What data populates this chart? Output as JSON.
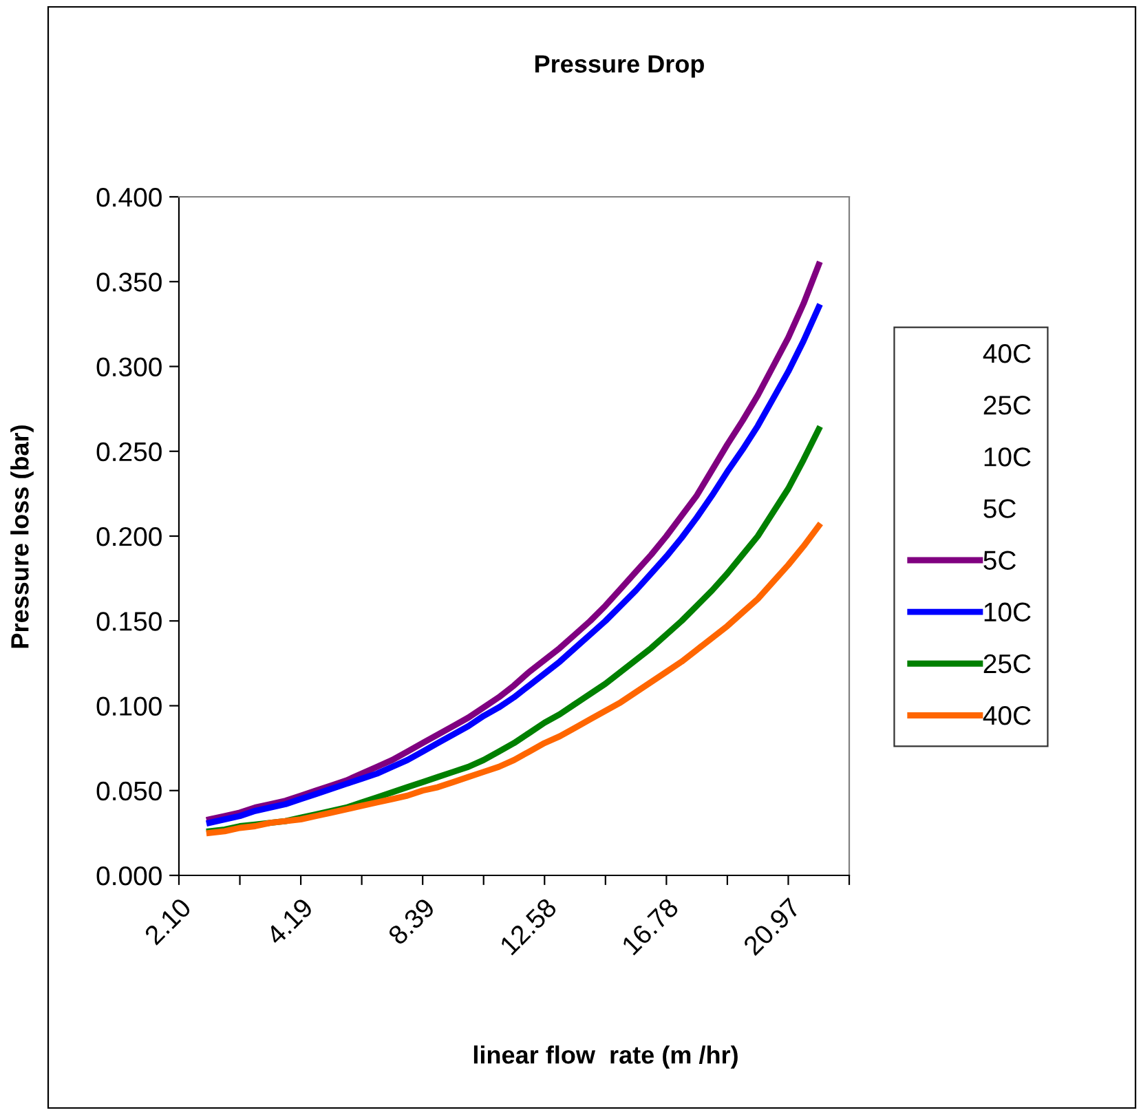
{
  "chart_data": {
    "type": "line",
    "title": "Pressure Drop",
    "xlabel": "linear flow  rate (m /hr)",
    "ylabel": "Pressure loss (bar)",
    "categories": [
      "2.10",
      null,
      null,
      null,
      null,
      null,
      null,
      null,
      "4.19",
      null,
      null,
      null,
      null,
      null,
      null,
      null,
      "8.39",
      null,
      null,
      null,
      null,
      null,
      null,
      null,
      "12.58",
      null,
      null,
      null,
      null,
      null,
      null,
      null,
      "16.78",
      null,
      null,
      null,
      null,
      null,
      null,
      null,
      "20.97",
      null,
      null,
      null,
      null
    ],
    "series": [
      {
        "name": "40C",
        "values": [
          null,
          null,
          null,
          null,
          null,
          null,
          null,
          null,
          null,
          null,
          null,
          null,
          null,
          null,
          null,
          null,
          null,
          null,
          null,
          null,
          null,
          null,
          null,
          null,
          null,
          null,
          null,
          null,
          null,
          null,
          null,
          null,
          null,
          null,
          null,
          null,
          null,
          null,
          null,
          null,
          null,
          null,
          null,
          null,
          null
        ]
      },
      {
        "name": "25C",
        "values": [
          null,
          null,
          null,
          null,
          null,
          null,
          null,
          null,
          null,
          null,
          null,
          null,
          null,
          null,
          null,
          null,
          null,
          null,
          null,
          null,
          null,
          null,
          null,
          null,
          null,
          null,
          null,
          null,
          null,
          null,
          null,
          null,
          null,
          null,
          null,
          null,
          null,
          null,
          null,
          null,
          null,
          null,
          null,
          null,
          null
        ]
      },
      {
        "name": "10C",
        "values": [
          null,
          null,
          null,
          null,
          null,
          null,
          null,
          null,
          null,
          null,
          null,
          null,
          null,
          null,
          null,
          null,
          null,
          null,
          null,
          null,
          null,
          null,
          null,
          null,
          null,
          null,
          null,
          null,
          null,
          null,
          null,
          null,
          null,
          null,
          null,
          null,
          null,
          null,
          null,
          null,
          null,
          null,
          null,
          null,
          null
        ]
      },
      {
        "name": "5C",
        "values": [
          null,
          null,
          null,
          null,
          null,
          null,
          null,
          null,
          null,
          null,
          null,
          null,
          null,
          null,
          null,
          null,
          null,
          null,
          null,
          null,
          null,
          null,
          null,
          null,
          null,
          null,
          null,
          null,
          null,
          null,
          null,
          null,
          null,
          null,
          null,
          null,
          null,
          null,
          null,
          null,
          null,
          null,
          null,
          null,
          null
        ]
      },
      {
        "name": "5C",
        "color": "#800080",
        "values": [
          null,
          null,
          0.033,
          0.035,
          0.037,
          0.04,
          0.042,
          0.044,
          0.047,
          0.05,
          0.053,
          0.056,
          0.06,
          0.064,
          0.068,
          0.073,
          0.078,
          0.083,
          0.088,
          0.093,
          0.099,
          0.105,
          0.112,
          0.12,
          0.127,
          0.134,
          0.142,
          0.15,
          0.159,
          0.169,
          0.179,
          0.189,
          0.2,
          0.212,
          0.224,
          0.239,
          0.254,
          0.268,
          0.283,
          0.3,
          0.317,
          0.337,
          0.36,
          null,
          null
        ]
      },
      {
        "name": "10C",
        "color": "#0000ff",
        "values": [
          null,
          null,
          0.031,
          0.033,
          0.035,
          0.038,
          0.04,
          0.042,
          0.045,
          0.048,
          0.051,
          0.054,
          0.057,
          0.06,
          0.064,
          0.068,
          0.073,
          0.078,
          0.083,
          0.088,
          0.094,
          0.099,
          0.105,
          0.112,
          0.119,
          0.126,
          0.134,
          0.142,
          0.15,
          0.159,
          0.168,
          0.178,
          0.188,
          0.199,
          0.211,
          0.224,
          0.238,
          0.251,
          0.265,
          0.281,
          0.297,
          0.315,
          0.335,
          null,
          null
        ]
      },
      {
        "name": "25C",
        "color": "#008000",
        "values": [
          null,
          null,
          0.026,
          0.027,
          0.029,
          0.03,
          0.031,
          0.032,
          0.034,
          0.036,
          0.038,
          0.04,
          0.043,
          0.046,
          0.049,
          0.052,
          0.055,
          0.058,
          0.061,
          0.064,
          0.068,
          0.073,
          0.078,
          0.084,
          0.09,
          0.095,
          0.101,
          0.107,
          0.113,
          0.12,
          0.127,
          0.134,
          0.142,
          0.15,
          0.159,
          0.168,
          0.178,
          0.189,
          0.2,
          0.214,
          0.228,
          0.245,
          0.263,
          null,
          null
        ]
      },
      {
        "name": "40C",
        "color": "#ff6600",
        "values": [
          null,
          null,
          0.025,
          0.026,
          0.028,
          0.029,
          0.031,
          0.032,
          0.033,
          0.035,
          0.037,
          0.039,
          0.041,
          0.043,
          0.045,
          0.047,
          0.05,
          0.052,
          0.055,
          0.058,
          0.061,
          0.064,
          0.068,
          0.073,
          0.078,
          0.082,
          0.087,
          0.092,
          0.097,
          0.102,
          0.108,
          0.114,
          0.12,
          0.126,
          0.133,
          0.14,
          0.147,
          0.155,
          0.163,
          0.173,
          0.183,
          0.194,
          0.206,
          null,
          null
        ]
      }
    ],
    "ylim": [
      0,
      0.4
    ],
    "yticks": [
      {
        "value": 0,
        "label": "0.000"
      },
      {
        "value": 0.05,
        "label": "0.050"
      },
      {
        "value": 0.1,
        "label": "0.100"
      },
      {
        "value": 0.15,
        "label": "0.150"
      },
      {
        "value": 0.2,
        "label": "0.200"
      },
      {
        "value": 0.25,
        "label": "0.250"
      },
      {
        "value": 0.3,
        "label": "0.300"
      },
      {
        "value": 0.35,
        "label": "0.350"
      },
      {
        "value": 0.4,
        "label": "0.400"
      }
    ],
    "grid": false,
    "legend": "right",
    "marker": "none",
    "line_style": "solid"
  }
}
